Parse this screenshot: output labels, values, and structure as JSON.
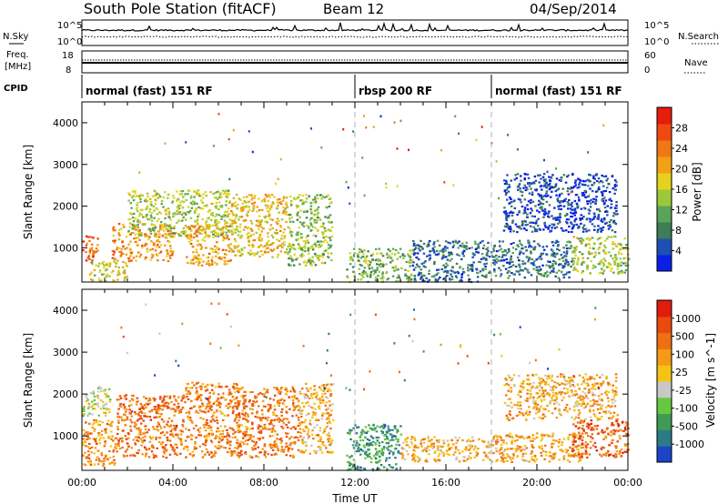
{
  "header": {
    "station": "South Pole Station (fitACF)",
    "beam": "Beam 12",
    "date": "04/Sep/2014"
  },
  "status_panels": {
    "nsky_label": "N.Sky",
    "nsky_ticks": [
      "10^5",
      "10^0"
    ],
    "nsearch_label": "N.Search",
    "freq_label_1": "Freq.",
    "freq_label_2": "[MHz]",
    "freq_ticks": [
      "18",
      "8"
    ],
    "nave_label": "Nave",
    "nave_ticks": [
      "60",
      "0"
    ],
    "cpid_label": "CPID",
    "cpid_segments": [
      {
        "label": "normal (fast) 151 RF",
        "start_hour": 0
      },
      {
        "label": "rbsp 200 RF",
        "start_hour": 12
      },
      {
        "label": "normal (fast) 151 RF",
        "start_hour": 18
      }
    ]
  },
  "chart_data": [
    {
      "type": "heatmap",
      "parameter": "Power",
      "ylabel": "Slant Range [km]",
      "xlabel": "",
      "ylim": [
        180,
        4500
      ],
      "xlim_hours": [
        0,
        24
      ],
      "yticks": [
        1000,
        2000,
        3000,
        4000
      ],
      "colorbar": {
        "label": "Power [dB]",
        "ticks": [
          "4",
          "8",
          "12",
          "16",
          "20",
          "24",
          "28"
        ],
        "colors": [
          "#0a1ee6",
          "#1f4fb4",
          "#3f7c58",
          "#5aa35a",
          "#9cc83c",
          "#e6d21e",
          "#f2a014",
          "#f07814",
          "#ee4a10",
          "#e61c0c"
        ]
      },
      "scatter_regions": [
        {
          "x": [
            0.0,
            0.7
          ],
          "y": [
            700,
            1300
          ],
          "level": 0.82
        },
        {
          "x": [
            0.3,
            2.0
          ],
          "y": [
            200,
            700
          ],
          "level": 0.55
        },
        {
          "x": [
            1.3,
            4.0
          ],
          "y": [
            700,
            1600
          ],
          "level": 0.72
        },
        {
          "x": [
            2.0,
            6.5
          ],
          "y": [
            1300,
            2400
          ],
          "level": 0.45
        },
        {
          "x": [
            4.5,
            6.5
          ],
          "y": [
            600,
            1600
          ],
          "level": 0.68
        },
        {
          "x": [
            6.5,
            9.0
          ],
          "y": [
            800,
            2300
          ],
          "level": 0.6
        },
        {
          "x": [
            9.0,
            11.0
          ],
          "y": [
            600,
            2300
          ],
          "level": 0.42
        },
        {
          "x": [
            11.6,
            14.5
          ],
          "y": [
            200,
            1000
          ],
          "level": 0.38
        },
        {
          "x": [
            14.5,
            17.5
          ],
          "y": [
            200,
            1200
          ],
          "level": 0.18
        },
        {
          "x": [
            17.5,
            21.5
          ],
          "y": [
            300,
            1200
          ],
          "level": 0.2
        },
        {
          "x": [
            21.5,
            24.0
          ],
          "y": [
            400,
            1300
          ],
          "level": 0.45
        },
        {
          "x": [
            18.5,
            23.5
          ],
          "y": [
            1400,
            2800
          ],
          "level": 0.08
        }
      ]
    },
    {
      "type": "heatmap",
      "parameter": "Velocity",
      "ylabel": "Slant Range [km]",
      "xlabel": "Time UT",
      "ylim": [
        180,
        4500
      ],
      "xlim_hours": [
        0,
        24
      ],
      "xticks": [
        "00:00",
        "04:00",
        "08:00",
        "12:00",
        "16:00",
        "20:00",
        "00:00"
      ],
      "yticks": [
        1000,
        2000,
        3000,
        4000
      ],
      "colorbar": {
        "label": "Velocity [m s^-1]",
        "ticks": [
          "1000",
          "500",
          "100",
          "25",
          "-25",
          "-100",
          "-500",
          "-1000"
        ],
        "colors": [
          "#1b44c8",
          "#2c7a88",
          "#3f9a56",
          "#66c83e",
          "#c8c8c8",
          "#f4c414",
          "#f49a14",
          "#f06e14",
          "#ea4a10",
          "#e01c0c"
        ]
      },
      "scatter_regions": [
        {
          "x": [
            0.0,
            1.5
          ],
          "y": [
            300,
            1400
          ],
          "level": 0.7
        },
        {
          "x": [
            0.0,
            1.2
          ],
          "y": [
            1500,
            2200
          ],
          "level": 0.45
        },
        {
          "x": [
            1.5,
            4.5
          ],
          "y": [
            500,
            2000
          ],
          "level": 0.78
        },
        {
          "x": [
            4.5,
            6.8
          ],
          "y": [
            500,
            2300
          ],
          "level": 0.74
        },
        {
          "x": [
            6.8,
            9.5
          ],
          "y": [
            500,
            2200
          ],
          "level": 0.76
        },
        {
          "x": [
            9.5,
            11.0
          ],
          "y": [
            600,
            2300
          ],
          "level": 0.62
        },
        {
          "x": [
            11.6,
            14.0
          ],
          "y": [
            200,
            1300
          ],
          "level": 0.2
        },
        {
          "x": [
            14.0,
            18.0
          ],
          "y": [
            400,
            1000
          ],
          "level": 0.6
        },
        {
          "x": [
            18.0,
            22.0
          ],
          "y": [
            400,
            1100
          ],
          "level": 0.66
        },
        {
          "x": [
            21.5,
            24.0
          ],
          "y": [
            500,
            1400
          ],
          "level": 0.82
        },
        {
          "x": [
            18.5,
            23.5
          ],
          "y": [
            1400,
            2500
          ],
          "level": 0.62
        }
      ]
    }
  ]
}
